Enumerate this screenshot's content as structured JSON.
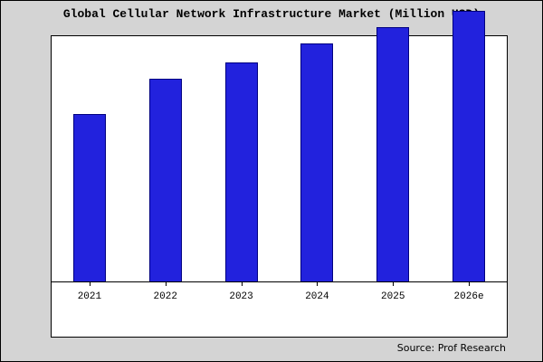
{
  "title": "Global Cellular Network Infrastructure Market (Million USD)",
  "source": "Source: Prof Research",
  "colors": {
    "page_background": "#d4d4d4",
    "plot_background": "#ffffff",
    "bar_fill": "#2222dd",
    "bar_border": "#000080",
    "axis": "#000000"
  },
  "chart_data": {
    "type": "bar",
    "title": "Global Cellular Network Infrastructure Market (Million USD)",
    "categories": [
      "2021",
      "2022",
      "2023",
      "2024",
      "2025",
      "2026e"
    ],
    "values": [
      62,
      75,
      81,
      88,
      94,
      100
    ],
    "xlabel": "",
    "ylabel": "",
    "ylim": [
      0,
      105
    ],
    "grid": false,
    "legend": false,
    "note": "No y-axis tick labels shown; values are relative estimates with 2026e = 100"
  }
}
